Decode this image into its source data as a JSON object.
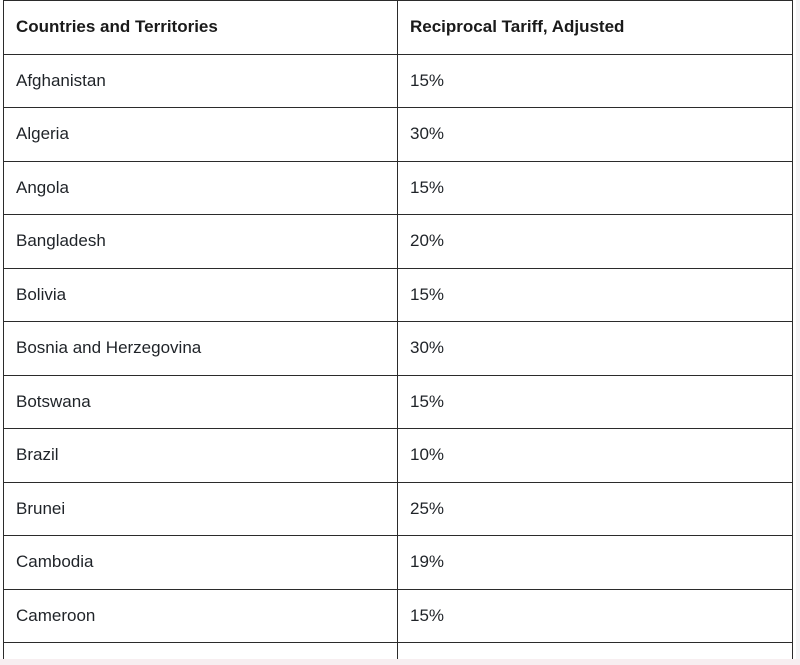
{
  "table": {
    "headers": [
      "Countries and Territories",
      "Reciprocal Tariff, Adjusted"
    ],
    "rows": [
      [
        "Afghanistan",
        "15%"
      ],
      [
        "Algeria",
        "30%"
      ],
      [
        "Angola",
        "15%"
      ],
      [
        "Bangladesh",
        "20%"
      ],
      [
        "Bolivia",
        "15%"
      ],
      [
        "Bosnia and Herzegovina",
        "30%"
      ],
      [
        "Botswana",
        "15%"
      ],
      [
        "Brazil",
        "10%"
      ],
      [
        "Brunei",
        "25%"
      ],
      [
        "Cambodia",
        "19%"
      ],
      [
        "Cameroon",
        "15%"
      ]
    ]
  }
}
